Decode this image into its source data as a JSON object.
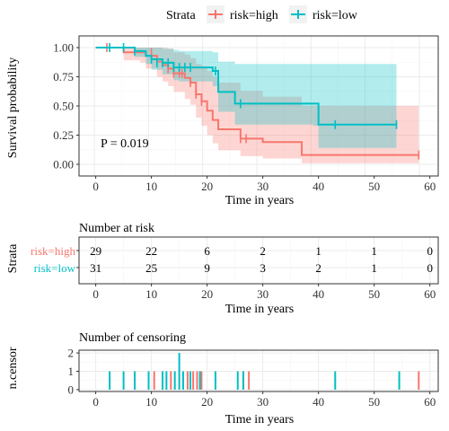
{
  "colors": {
    "high": "#F8766D",
    "low": "#00BFC4",
    "high_fill": "#F8766D",
    "low_fill": "#00BFC4",
    "grid_major": "#EBEBEB",
    "grid_minor": "#F5F5F5",
    "panel_border": "#333333"
  },
  "legend": {
    "title": "Strata",
    "items": [
      {
        "label": "risk=high",
        "key": "high"
      },
      {
        "label": "risk=low",
        "key": "low"
      }
    ]
  },
  "chart_data": [
    {
      "type": "line",
      "subtype": "kaplan-meier",
      "xlabel": "Time in years",
      "ylabel": "Survival probability",
      "xlim": [
        0,
        60
      ],
      "ylim": [
        0,
        1
      ],
      "xticks": [
        0,
        10,
        20,
        30,
        40,
        50,
        60
      ],
      "yticks": [
        0,
        0.25,
        0.5,
        0.75,
        1
      ],
      "ytick_labels": [
        "0.00",
        "0.25",
        "0.50",
        "0.75",
        "1.00"
      ],
      "grid": true,
      "annotation": "P = 0.019",
      "series": [
        {
          "name": "risk=high",
          "key": "high",
          "steps": [
            [
              0,
              1
            ],
            [
              3,
              1
            ],
            [
              5,
              0.96
            ],
            [
              8,
              0.96
            ],
            [
              9,
              0.93
            ],
            [
              11,
              0.88
            ],
            [
              12,
              0.85
            ],
            [
              13,
              0.82
            ],
            [
              14,
              0.78
            ],
            [
              16,
              0.74
            ],
            [
              17,
              0.7
            ],
            [
              18,
              0.6
            ],
            [
              19,
              0.54
            ],
            [
              20,
              0.46
            ],
            [
              21,
              0.38
            ],
            [
              22,
              0.3
            ],
            [
              26,
              0.22
            ],
            [
              30,
              0.19
            ],
            [
              37,
              0.08
            ],
            [
              58,
              0.08
            ]
          ],
          "lower": [
            [
              0,
              1
            ],
            [
              3,
              1
            ],
            [
              5,
              0.89
            ],
            [
              8,
              0.87
            ],
            [
              9,
              0.82
            ],
            [
              11,
              0.75
            ],
            [
              12,
              0.71
            ],
            [
              13,
              0.67
            ],
            [
              14,
              0.62
            ],
            [
              16,
              0.56
            ],
            [
              17,
              0.51
            ],
            [
              18,
              0.4
            ],
            [
              19,
              0.33
            ],
            [
              20,
              0.25
            ],
            [
              21,
              0.18
            ],
            [
              22,
              0.12
            ],
            [
              26,
              0.07
            ],
            [
              30,
              0.05
            ],
            [
              37,
              0.01
            ],
            [
              58,
              0.01
            ]
          ],
          "upper": [
            [
              0,
              1
            ],
            [
              3,
              1
            ],
            [
              5,
              1
            ],
            [
              8,
              1
            ],
            [
              9,
              1
            ],
            [
              11,
              1
            ],
            [
              12,
              1
            ],
            [
              13,
              0.99
            ],
            [
              14,
              0.96
            ],
            [
              16,
              0.94
            ],
            [
              17,
              0.91
            ],
            [
              18,
              0.86
            ],
            [
              19,
              0.84
            ],
            [
              20,
              0.8
            ],
            [
              21,
              0.75
            ],
            [
              22,
              0.7
            ],
            [
              26,
              0.63
            ],
            [
              30,
              0.58
            ],
            [
              37,
              0.5
            ],
            [
              58,
              0.5
            ]
          ],
          "censor_times": [
            2,
            10,
            13,
            14,
            15,
            15.5,
            17,
            18,
            19,
            26,
            27,
            58
          ],
          "censor_y": [
            1,
            0.96,
            0.82,
            0.78,
            0.78,
            0.78,
            0.7,
            0.6,
            0.54,
            0.22,
            0.22,
            0.08
          ]
        },
        {
          "name": "risk=low",
          "key": "low",
          "steps": [
            [
              0,
              1
            ],
            [
              5,
              1
            ],
            [
              7,
              0.97
            ],
            [
              9,
              0.93
            ],
            [
              10,
              0.9
            ],
            [
              12,
              0.87
            ],
            [
              14,
              0.83
            ],
            [
              15,
              0.83
            ],
            [
              21,
              0.8
            ],
            [
              22,
              0.62
            ],
            [
              25,
              0.52
            ],
            [
              39,
              0.52
            ],
            [
              40,
              0.34
            ],
            [
              54,
              0.34
            ]
          ],
          "lower": [
            [
              0,
              1
            ],
            [
              5,
              1
            ],
            [
              7,
              0.92
            ],
            [
              9,
              0.86
            ],
            [
              10,
              0.81
            ],
            [
              12,
              0.77
            ],
            [
              14,
              0.72
            ],
            [
              15,
              0.71
            ],
            [
              21,
              0.67
            ],
            [
              22,
              0.45
            ],
            [
              25,
              0.34
            ],
            [
              39,
              0.33
            ],
            [
              40,
              0.14
            ],
            [
              54,
              0.14
            ]
          ],
          "upper": [
            [
              0,
              1
            ],
            [
              5,
              1
            ],
            [
              7,
              1
            ],
            [
              9,
              1
            ],
            [
              10,
              1
            ],
            [
              12,
              0.99
            ],
            [
              14,
              0.98
            ],
            [
              15,
              0.97
            ],
            [
              21,
              0.96
            ],
            [
              22,
              0.88
            ],
            [
              25,
              0.86
            ],
            [
              39,
              0.86
            ],
            [
              40,
              0.86
            ],
            [
              54,
              0.86
            ]
          ],
          "censor_times": [
            2.5,
            5,
            7,
            10,
            11,
            12,
            13,
            14,
            15,
            16,
            17,
            21.5,
            26,
            43,
            54
          ],
          "censor_y": [
            1,
            1,
            0.97,
            0.9,
            0.87,
            0.87,
            0.87,
            0.83,
            0.83,
            0.83,
            0.83,
            0.8,
            0.52,
            0.34,
            0.34
          ]
        }
      ]
    },
    {
      "type": "table",
      "title": "Number at risk",
      "ylabel": "Strata",
      "xlabel": "Time in years",
      "xticks": [
        0,
        10,
        20,
        30,
        40,
        50,
        60
      ],
      "rows": [
        {
          "label": "risk=high",
          "key": "high",
          "values": [
            29,
            22,
            6,
            2,
            1,
            1,
            0
          ]
        },
        {
          "label": "risk=low",
          "key": "low",
          "values": [
            31,
            25,
            9,
            3,
            2,
            1,
            0
          ]
        }
      ]
    },
    {
      "type": "bar",
      "title": "Number of censoring",
      "ylabel": "n.censor",
      "xlabel": "Time in years",
      "xlim": [
        0,
        60
      ],
      "ylim": [
        0,
        2
      ],
      "xticks": [
        0,
        10,
        20,
        30,
        40,
        50,
        60
      ],
      "yticks": [
        0,
        1,
        2
      ],
      "series": [
        {
          "name": "risk=high",
          "key": "high",
          "x": [
            10.5,
            13.5,
            16.5,
            17.5,
            18.2,
            19,
            26.5,
            27.5,
            58
          ],
          "values": [
            1,
            1,
            1,
            1,
            1,
            1,
            1,
            1,
            1
          ]
        },
        {
          "name": "risk=low",
          "key": "low",
          "x": [
            2.5,
            5,
            7,
            9.5,
            12,
            12.7,
            14.2,
            15,
            15.7,
            17,
            18.7,
            21.5,
            25.5,
            26.5,
            43,
            54.5
          ],
          "values": [
            1,
            1,
            1,
            1,
            1,
            1,
            1,
            2,
            1,
            1,
            1,
            1,
            1,
            1,
            1,
            1
          ]
        }
      ]
    }
  ]
}
